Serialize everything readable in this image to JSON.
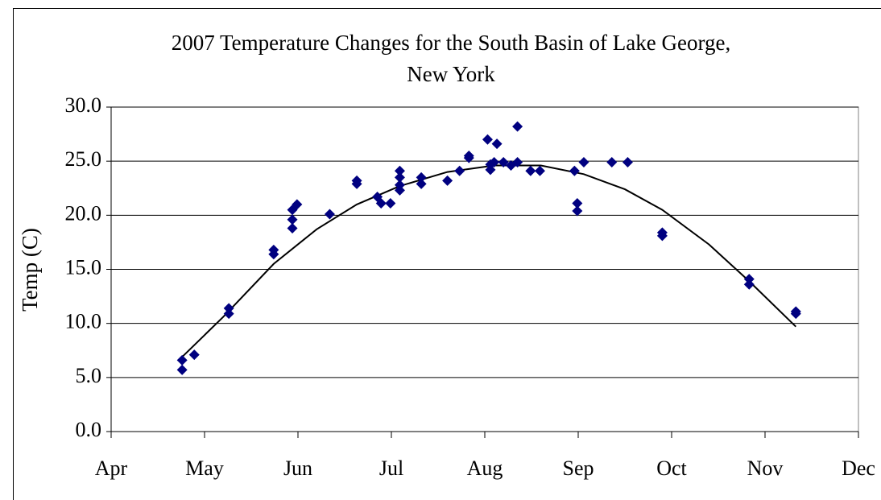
{
  "chart_data": {
    "type": "scatter",
    "title": "2007 Temperature Changes for the South Basin of Lake George,",
    "subtitle": "New York",
    "y_label": "Temp (C)",
    "xlim": [
      0,
      8
    ],
    "xticks": [
      {
        "value": 0,
        "label": "Apr"
      },
      {
        "value": 1,
        "label": "May"
      },
      {
        "value": 2,
        "label": "Jun"
      },
      {
        "value": 3,
        "label": "Jul"
      },
      {
        "value": 4,
        "label": "Aug"
      },
      {
        "value": 5,
        "label": "Sep"
      },
      {
        "value": 6,
        "label": "Oct"
      },
      {
        "value": 7,
        "label": "Nov"
      },
      {
        "value": 8,
        "label": "Dec"
      }
    ],
    "ylim": [
      0,
      30
    ],
    "yticks": [
      {
        "value": 0,
        "label": "0.0"
      },
      {
        "value": 5,
        "label": "5.0"
      },
      {
        "value": 10,
        "label": "10.0"
      },
      {
        "value": 15,
        "label": "15.0"
      },
      {
        "value": 20,
        "label": "20.0"
      },
      {
        "value": 25,
        "label": "25.0"
      },
      {
        "value": 30,
        "label": "30.0"
      }
    ],
    "grid": true,
    "color": "#000080",
    "x": [
      0.76,
      0.76,
      0.89,
      1.26,
      1.26,
      1.74,
      1.74,
      1.94,
      1.94,
      1.94,
      1.99,
      2.34,
      2.63,
      2.63,
      2.85,
      2.89,
      2.99,
      3.09,
      3.09,
      3.09,
      3.09,
      3.32,
      3.32,
      3.6,
      3.73,
      3.83,
      3.83,
      4.03,
      4.06,
      4.06,
      4.1,
      4.13,
      4.2,
      4.28,
      4.35,
      4.35,
      4.49,
      4.59,
      4.96,
      4.99,
      4.99,
      5.06,
      5.36,
      5.53,
      5.9,
      5.9,
      6.83,
      6.83,
      7.33,
      7.33
    ],
    "values": [
      5.7,
      6.6,
      7.1,
      10.9,
      11.4,
      16.4,
      16.8,
      18.8,
      19.6,
      20.5,
      21.0,
      20.1,
      22.9,
      23.2,
      21.7,
      21.1,
      21.1,
      22.3,
      22.8,
      23.5,
      24.1,
      22.9,
      23.5,
      23.2,
      24.1,
      25.3,
      25.5,
      27.0,
      24.2,
      24.7,
      24.9,
      26.6,
      24.9,
      24.6,
      28.2,
      24.9,
      24.1,
      24.1,
      24.1,
      21.1,
      20.4,
      24.9,
      24.9,
      24.9,
      18.4,
      18.1,
      14.1,
      13.6,
      11.1,
      10.9
    ],
    "trendline": {
      "color": "#000000",
      "x": [
        0.76,
        1.2,
        1.74,
        2.2,
        2.63,
        3.09,
        3.6,
        4.1,
        4.6,
        5.06,
        5.5,
        5.9,
        6.4,
        6.83,
        7.33
      ],
      "values": [
        6.9,
        10.6,
        15.5,
        18.7,
        21.0,
        22.7,
        24.0,
        24.6,
        24.6,
        23.8,
        22.4,
        20.5,
        17.3,
        13.9,
        9.7
      ]
    }
  }
}
